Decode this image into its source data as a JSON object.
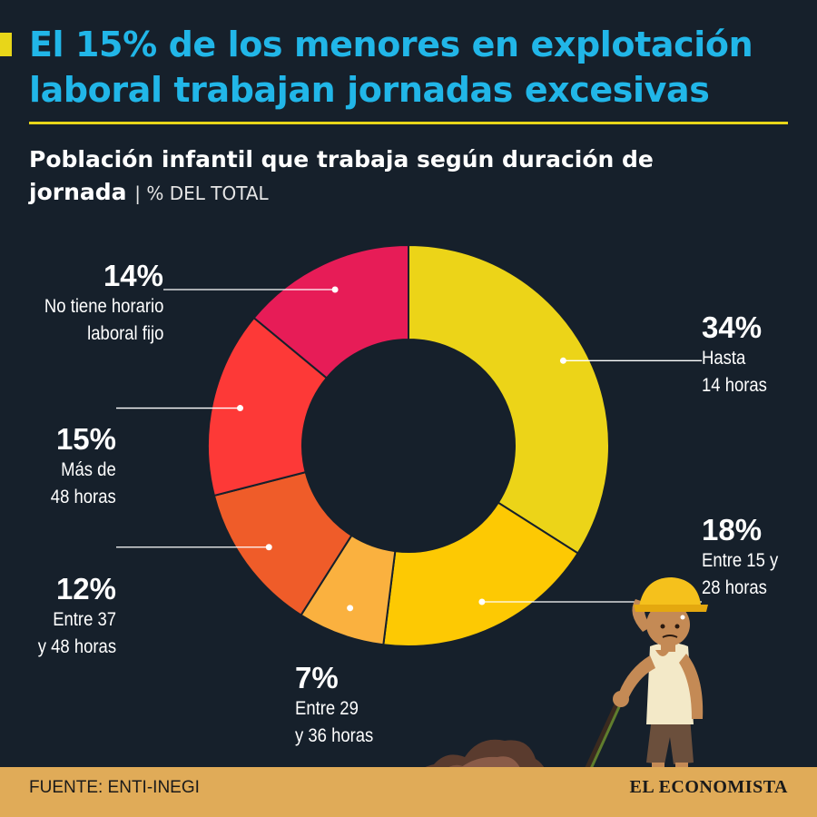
{
  "header": {
    "title": "El 15% de los menores en explotación laboral trabajan jornadas excesivas",
    "subtitle": "Población infantil que trabaja según duración de jornada",
    "unit": "| % DEL TOTAL"
  },
  "chart_data": {
    "type": "pie",
    "title": "Población infantil que trabaja según duración de jornada",
    "unit": "% DEL TOTAL",
    "categories": [
      "Hasta 14 horas",
      "Entre 15 y 28 horas",
      "Entre 29 y 36 horas",
      "Entre 37 y 48 horas",
      "Más de 48 horas",
      "No tiene horario laboral fijo"
    ],
    "values": [
      34,
      18,
      7,
      12,
      15,
      14
    ],
    "colors": [
      "#ecd418",
      "#fdc903",
      "#fab13f",
      "#ef5c29",
      "#fd3937",
      "#e71c57"
    ],
    "labels": [
      {
        "pct": "34%",
        "text": "Hasta\n14 horas"
      },
      {
        "pct": "18%",
        "text": "Entre 15 y\n28 horas"
      },
      {
        "pct": "7%",
        "text": "Entre 29\ny 36 horas"
      },
      {
        "pct": "12%",
        "text": "Entre 37\ny 48 horas"
      },
      {
        "pct": "15%",
        "text": "Más de\n48 horas"
      },
      {
        "pct": "14%",
        "text": "No tiene horario\nlaboral fijo"
      }
    ],
    "donut": true
  },
  "footer": {
    "source": "FUENTE: ENTI-INEGI",
    "brand": "EL ECONOMISTA"
  }
}
